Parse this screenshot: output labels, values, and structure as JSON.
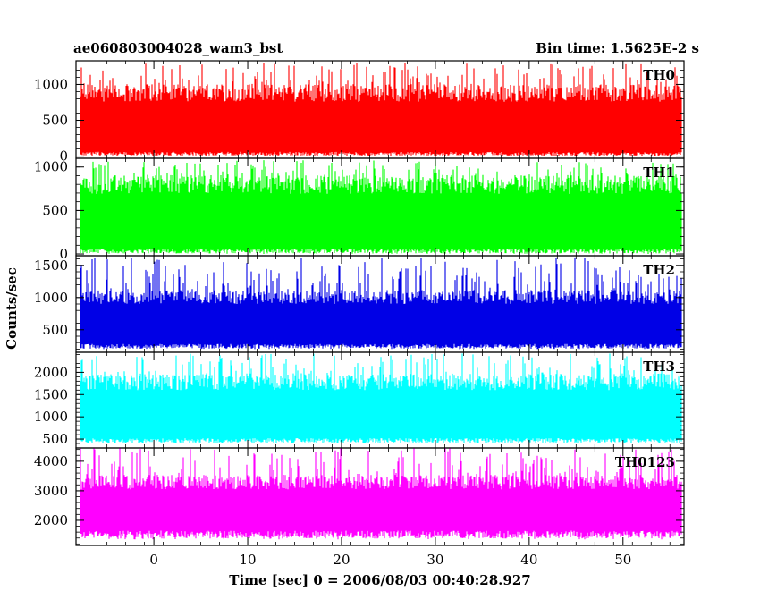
{
  "chart_data": {
    "type": "line",
    "title": "ae060803004028_wam3_bst",
    "subtitle": "Bin time: 1.5625E-2 s",
    "xlabel": "Time [sec] 0 = 2006/08/03 00:40:28.927",
    "ylabel": "Counts/sec",
    "xlim": [
      -8.3,
      56.5
    ],
    "xticks": [
      0,
      10,
      20,
      30,
      40,
      50
    ],
    "x_range_data": [
      -7.8,
      56.2
    ],
    "panels": [
      {
        "name": "TH0",
        "color": "#ff0000",
        "ylim": [
          -30,
          1330
        ],
        "yticks": [
          0,
          500,
          1000
        ],
        "base_low": 60,
        "base_high": 760,
        "spike_max": 1300,
        "floor": 0
      },
      {
        "name": "TH1",
        "color": "#00ff00",
        "ylim": [
          -20,
          1100
        ],
        "yticks": [
          0,
          500,
          1000
        ],
        "base_low": 60,
        "base_high": 690,
        "spike_max": 1080,
        "floor": 0
      },
      {
        "name": "TH2",
        "color": "#0000e6",
        "ylim": [
          150,
          1650
        ],
        "yticks": [
          500,
          1000,
          1500
        ],
        "base_low": 280,
        "base_high": 900,
        "spike_max": 1640,
        "floor": 200
      },
      {
        "name": "TH3",
        "color": "#00ffff",
        "ylim": [
          300,
          2450
        ],
        "yticks": [
          500,
          1000,
          1500,
          2000
        ],
        "base_low": 520,
        "base_high": 1600,
        "spike_max": 2450,
        "floor": 400
      },
      {
        "name": "TH0123",
        "color": "#ff00ff",
        "ylim": [
          1150,
          4450
        ],
        "yticks": [
          2000,
          3000,
          4000
        ],
        "base_low": 1650,
        "base_high": 3050,
        "spike_max": 4450,
        "floor": 1350
      }
    ]
  }
}
